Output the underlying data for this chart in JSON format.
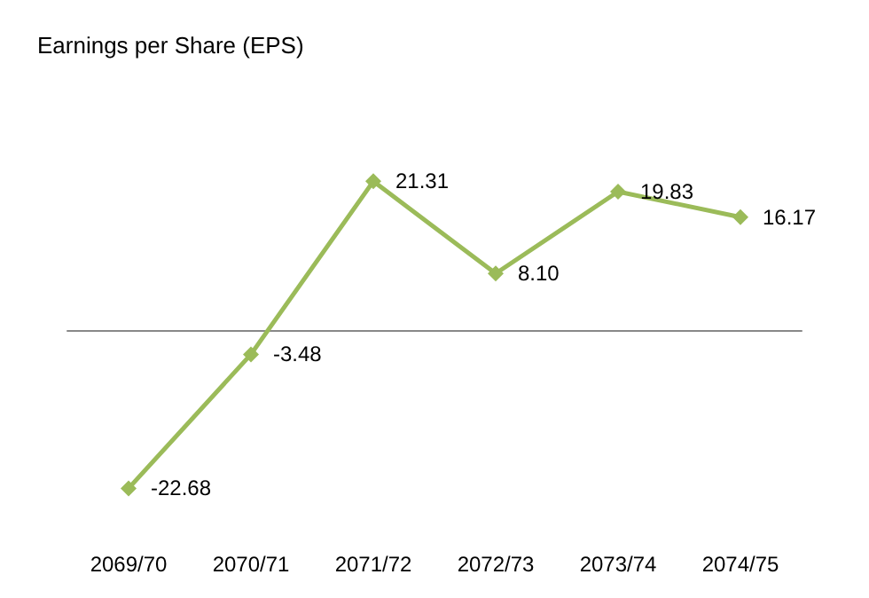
{
  "chart_data": {
    "type": "line",
    "title": "Earnings per Share (EPS)",
    "categories": [
      "2069/70",
      "2070/71",
      "2071/72",
      "2072/73",
      "2073/74",
      "2074/75"
    ],
    "values": [
      -22.68,
      -3.48,
      21.31,
      8.1,
      19.83,
      16.17
    ],
    "value_labels": [
      "-22.68",
      "-3.48",
      "21.31",
      "8.10",
      "19.83",
      "16.17"
    ],
    "color": "#9bbb59",
    "marker": "diamond",
    "line_style": "solid",
    "grid": false,
    "tick_labels": "x"
  }
}
